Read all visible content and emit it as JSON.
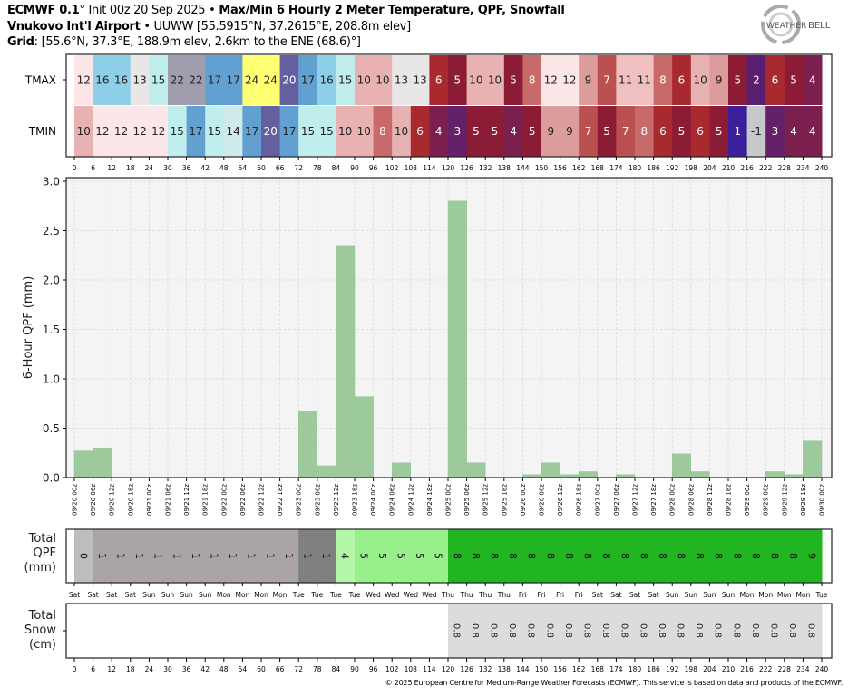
{
  "header": {
    "line1_bold": "ECMWF 0.1",
    "line1_deg": "°",
    "line1_init": " Init 00z 20 Sep 2025 • ",
    "line1_title": "Max/Min 6 Hourly 2 Meter Temperature,  QPF,  Snowfall",
    "line2_bold": "Vnukovo Int'l Airport",
    "line2_rest": " • UUWW [55.5915°N, 37.2615°E, 208.8m elev]",
    "line3_bold": "Grid",
    "line3_rest": ": [55.6°N, 37.3°E, 188.9m elev, 2.6km to the ENE (68.6)°]",
    "logo_text": "WeatherBELL"
  },
  "footer": {
    "copyright": "© 2025 European Centre for Medium-Range Weather Forecasts (ECMWF). This service is based on data and products of the ECMWF."
  },
  "colors": {
    "bar": "#9cca9c",
    "plot_bg": "#f4f4f4",
    "temp": {
      "24": "#ffff73",
      "22": "#a09eae",
      "20": "#6460a0",
      "17": "#62a0d2",
      "16": "#8ecfe8",
      "15": "#bfeeec",
      "14": "#cfeaea",
      "13": "#e8e6e6",
      "12": "#fde6e8",
      "11": "#f0c0c0",
      "10": "#e8b2b2",
      "9": "#dd9c9c",
      "8": "#c86a6a",
      "7": "#bb5050",
      "6": "#a82a2e",
      "5": "#8c1c36",
      "4": "#7a1f4e",
      "3": "#642068",
      "2": "#5a1e70",
      "1": "#3a1e9a",
      "-1": "#c6c8ca"
    },
    "total_qpf": {
      "0": "#bdbdbd",
      "1": "#aaa4a4",
      "1_dark": "#808080",
      "4": "#b5f7a8",
      "5": "#98f08a",
      "8": "#22b522",
      "9": "#22b522"
    },
    "snow": "#dcdcdc"
  },
  "chart_data": [
    {
      "type": "heatmap",
      "title": "Max/Min 6 Hourly 2 Meter Temperature",
      "rows": [
        "TMAX",
        "TMIN"
      ],
      "xlabel": "Forecast hour",
      "x_hours": [
        "0",
        "6",
        "12",
        "18",
        "24",
        "30",
        "36",
        "42",
        "48",
        "54",
        "60",
        "66",
        "72",
        "78",
        "84",
        "90",
        "96",
        "102",
        "108",
        "114",
        "120",
        "126",
        "132",
        "138",
        "144",
        "150",
        "156",
        "162",
        "168",
        "174",
        "180",
        "186",
        "192",
        "198",
        "204",
        "210",
        "216",
        "222",
        "228",
        "234",
        "240"
      ],
      "tmax": [
        12,
        16,
        16,
        13,
        15,
        22,
        22,
        17,
        17,
        24,
        24,
        20,
        17,
        16,
        15,
        10,
        10,
        13,
        13,
        6,
        5,
        10,
        10,
        5,
        8,
        12,
        12,
        9,
        7,
        11,
        11,
        8,
        6,
        10,
        9,
        5,
        2,
        6,
        5,
        4
      ],
      "tmin": [
        10,
        12,
        12,
        12,
        12,
        15,
        17,
        15,
        14,
        17,
        20,
        17,
        15,
        15,
        10,
        10,
        8,
        10,
        6,
        4,
        3,
        5,
        5,
        4,
        5,
        9,
        9,
        7,
        5,
        7,
        8,
        6,
        5,
        6,
        5,
        1,
        -1,
        3,
        4,
        4
      ]
    },
    {
      "type": "bar",
      "title": "6-Hour QPF",
      "ylabel": "6-Hour QPF (mm)",
      "ylim": [
        0,
        3.0
      ],
      "yticks": [
        "0.0",
        "0.5",
        "1.0",
        "1.5",
        "2.0",
        "2.5",
        "3.0"
      ],
      "grid": true,
      "x_labels": [
        "09/20 00z",
        "09/20 06z",
        "09/20 12z",
        "09/20 18z",
        "09/21 00z",
        "09/21 06z",
        "09/21 12z",
        "09/21 18z",
        "09/22 00z",
        "09/22 06z",
        "09/22 12z",
        "09/22 18z",
        "09/23 00z",
        "09/23 06z",
        "09/23 12z",
        "09/23 18z",
        "09/24 00z",
        "09/24 06z",
        "09/24 12z",
        "09/24 18z",
        "09/25 00z",
        "09/25 06z",
        "09/25 12z",
        "09/25 18z",
        "09/26 00z",
        "09/26 06z",
        "09/26 12z",
        "09/26 18z",
        "09/27 00z",
        "09/27 06z",
        "09/27 12z",
        "09/27 18z",
        "09/28 00z",
        "09/28 06z",
        "09/28 12z",
        "09/28 18z",
        "09/29 00z",
        "09/29 06z",
        "09/29 12z",
        "09/29 18z",
        "09/30 00z"
      ],
      "values": [
        0.27,
        0.3,
        0,
        0,
        0,
        0,
        0,
        0,
        0,
        0,
        0,
        0,
        0.67,
        0.12,
        2.35,
        0.82,
        0,
        0.15,
        0,
        0,
        2.8,
        0.15,
        0,
        0,
        0.03,
        0.15,
        0.03,
        0.06,
        0,
        0.03,
        0,
        0,
        0.24,
        0.06,
        0,
        0,
        0,
        0.06,
        0.03,
        0.37
      ]
    },
    {
      "type": "table",
      "title": "Total QPF (mm)",
      "label_lines": [
        "Total",
        "QPF",
        "(mm)"
      ],
      "day_labels": [
        "Sat",
        "Sat",
        "Sat",
        "Sat",
        "Sun",
        "Sun",
        "Sun",
        "Sun",
        "Mon",
        "Mon",
        "Mon",
        "Mon",
        "Tue",
        "Tue",
        "Tue",
        "Tue",
        "Wed",
        "Wed",
        "Wed",
        "Wed",
        "Thu",
        "Thu",
        "Thu",
        "Thu",
        "Fri",
        "Fri",
        "Fri",
        "Fri",
        "Sat",
        "Sat",
        "Sat",
        "Sat",
        "Sun",
        "Sun",
        "Sun",
        "Sun",
        "Mon",
        "Mon",
        "Mon",
        "Mon",
        "Tue"
      ],
      "values": [
        "0",
        "1",
        "1",
        "1",
        "1",
        "1",
        "1",
        "1",
        "1",
        "1",
        "1",
        "1",
        "1",
        "1",
        "4",
        "5",
        "5",
        "5",
        "5",
        "5",
        "8",
        "8",
        "8",
        "8",
        "8",
        "8",
        "8",
        "8",
        "8",
        "8",
        "8",
        "8",
        "8",
        "8",
        "8",
        "8",
        "8",
        "8",
        "8",
        "9"
      ]
    },
    {
      "type": "table",
      "title": "Total Snow (cm)",
      "label_lines": [
        "Total",
        "Snow",
        "(cm)"
      ],
      "values": [
        "",
        "",
        "",
        "",
        "",
        "",
        "",
        "",
        "",
        "",
        "",
        "",
        "",
        "",
        "",
        "",
        "",
        "",
        "",
        "",
        "0.8",
        "0.8",
        "0.8",
        "0.8",
        "0.8",
        "0.8",
        "0.8",
        "0.8",
        "0.8",
        "0.8",
        "0.8",
        "0.8",
        "0.8",
        "0.8",
        "0.8",
        "0.8",
        "0.8",
        "0.8",
        "0.8",
        "0.8"
      ]
    }
  ]
}
